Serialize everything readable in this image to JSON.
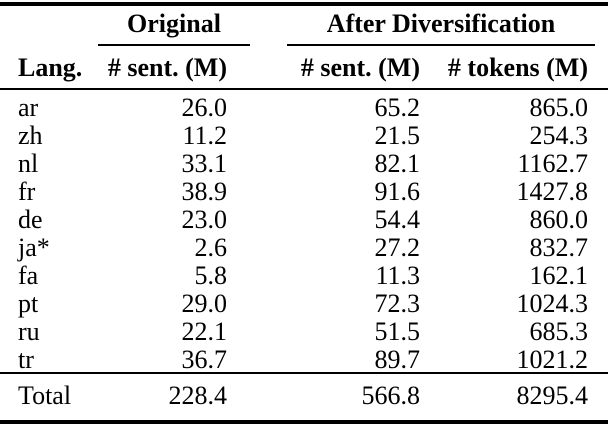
{
  "table": {
    "group_headers": {
      "original": "Original",
      "after": "After Diversification"
    },
    "columns": {
      "lang": "Lang.",
      "orig_sent": "# sent. (M)",
      "after_sent": "# sent. (M)",
      "after_tokens": "# tokens (M)"
    },
    "rows": [
      {
        "lang": "ar",
        "orig_sent": "26.0",
        "after_sent": "65.2",
        "after_tokens": "865.0"
      },
      {
        "lang": "zh",
        "orig_sent": "11.2",
        "after_sent": "21.5",
        "after_tokens": "254.3"
      },
      {
        "lang": "nl",
        "orig_sent": "33.1",
        "after_sent": "82.1",
        "after_tokens": "1162.7"
      },
      {
        "lang": "fr",
        "orig_sent": "38.9",
        "after_sent": "91.6",
        "after_tokens": "1427.8"
      },
      {
        "lang": "de",
        "orig_sent": "23.0",
        "after_sent": "54.4",
        "after_tokens": "860.0"
      },
      {
        "lang": "ja*",
        "orig_sent": "2.6",
        "after_sent": "27.2",
        "after_tokens": "832.7"
      },
      {
        "lang": "fa",
        "orig_sent": "5.8",
        "after_sent": "11.3",
        "after_tokens": "162.1"
      },
      {
        "lang": "pt",
        "orig_sent": "29.0",
        "after_sent": "72.3",
        "after_tokens": "1024.3"
      },
      {
        "lang": "ru",
        "orig_sent": "22.1",
        "after_sent": "51.5",
        "after_tokens": "685.3"
      },
      {
        "lang": "tr",
        "orig_sent": "36.7",
        "after_sent": "89.7",
        "after_tokens": "1021.2"
      }
    ],
    "total_row": {
      "lang": "Total",
      "orig_sent": "228.4",
      "after_sent": "566.8",
      "after_tokens": "8295.4"
    },
    "colors": {
      "rule": "#000000",
      "background": "#ffffff",
      "text": "#000000"
    }
  }
}
